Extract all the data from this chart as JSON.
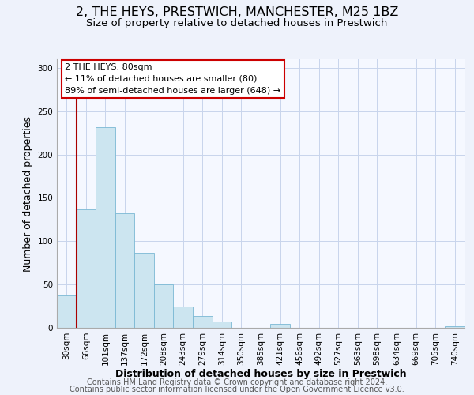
{
  "title": "2, THE HEYS, PRESTWICH, MANCHESTER, M25 1BZ",
  "subtitle": "Size of property relative to detached houses in Prestwich",
  "xlabel": "Distribution of detached houses by size in Prestwich",
  "ylabel": "Number of detached properties",
  "bar_labels": [
    "30sqm",
    "66sqm",
    "101sqm",
    "137sqm",
    "172sqm",
    "208sqm",
    "243sqm",
    "279sqm",
    "314sqm",
    "350sqm",
    "385sqm",
    "421sqm",
    "456sqm",
    "492sqm",
    "527sqm",
    "563sqm",
    "598sqm",
    "634sqm",
    "669sqm",
    "705sqm",
    "740sqm"
  ],
  "bar_values": [
    37,
    137,
    232,
    132,
    87,
    50,
    25,
    14,
    7,
    0,
    0,
    5,
    0,
    0,
    0,
    0,
    0,
    0,
    0,
    0,
    2
  ],
  "bar_color": "#cce5f0",
  "bar_edge_color": "#7ab8d4",
  "vline_x_index": 1,
  "vline_color": "#aa0000",
  "ylim": [
    0,
    310
  ],
  "yticks": [
    0,
    50,
    100,
    150,
    200,
    250,
    300
  ],
  "annotation_title": "2 THE HEYS: 80sqm",
  "annotation_line1": "← 11% of detached houses are smaller (80)",
  "annotation_line2": "89% of semi-detached houses are larger (648) →",
  "annotation_box_color": "#ffffff",
  "annotation_box_edge": "#cc0000",
  "footer_line1": "Contains HM Land Registry data © Crown copyright and database right 2024.",
  "footer_line2": "Contains public sector information licensed under the Open Government Licence v3.0.",
  "background_color": "#eef2fb",
  "plot_bg_color": "#f5f8ff",
  "grid_color": "#c8d4ec",
  "title_fontsize": 11.5,
  "subtitle_fontsize": 9.5,
  "axis_label_fontsize": 9,
  "tick_fontsize": 7.5,
  "annotation_fontsize": 8,
  "footer_fontsize": 7
}
